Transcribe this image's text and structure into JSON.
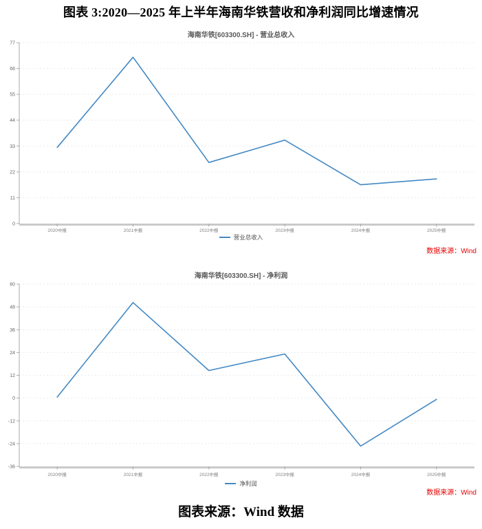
{
  "page": {
    "title": "图表 3:2020—2025 年上半年海南华铁营收和净利润同比增速情况",
    "caption": "图表来源：Wind 数据"
  },
  "colors": {
    "line": "#4288c4",
    "source_note": "#e60000",
    "grid": "#e9e9e9",
    "axis": "#aaaaaa",
    "axis_bottom": "#c9c9c9",
    "y_label": "#666666",
    "x_label": "#808080",
    "chart_title": "#595959"
  },
  "chart_data": [
    {
      "type": "line",
      "title": "海南华铁[603300.SH] - 营业总收入",
      "legend": "营业总收入",
      "source_note": "数据来源：Wind",
      "categories": [
        "2020中报",
        "2021中报",
        "2022中报",
        "2023中报",
        "2024中报",
        "2025中报"
      ],
      "values": [
        32.4,
        70.8,
        26.0,
        35.5,
        16.5,
        19.0
      ],
      "ylim": [
        0,
        77
      ],
      "ytick_step": 11,
      "grid": true,
      "legend_position": "bottom",
      "xlabel": "",
      "ylabel": ""
    },
    {
      "type": "line",
      "title": "海南华铁[603300.SH] - 净利润",
      "legend": "净利润",
      "source_note": "数据来源：Wind",
      "categories": [
        "2020中报",
        "2021中报",
        "2022中报",
        "2023中报",
        "2024中报",
        "2025中报"
      ],
      "values": [
        0.5,
        50.3,
        14.5,
        23.2,
        -25.3,
        -0.7
      ],
      "ylim": [
        -36,
        60
      ],
      "ytick_step": 12,
      "grid": true,
      "legend_position": "bottom",
      "xlabel": "",
      "ylabel": ""
    }
  ]
}
